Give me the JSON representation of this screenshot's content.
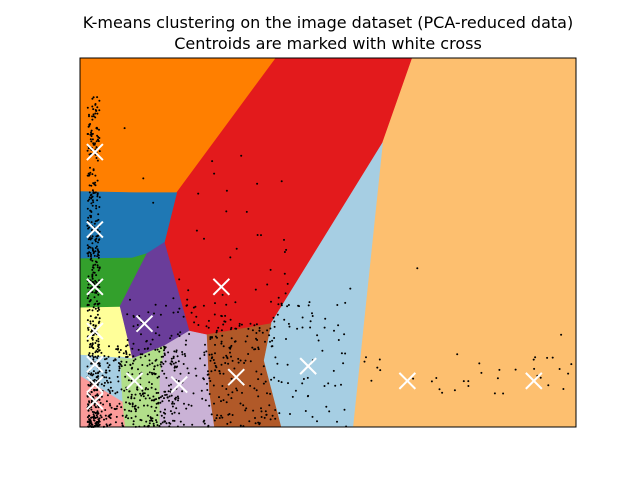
{
  "chart_data": {
    "type": "voronoi_scatter",
    "title": "K-means clustering on the image dataset (PCA-reduced data)",
    "subtitle": "Centroids are marked with white cross",
    "xlabel": "",
    "ylabel": "",
    "xlim": [
      0,
      100
    ],
    "ylim": [
      0,
      100
    ],
    "ticks_shown": false,
    "grid": false,
    "legend": "none",
    "regions": [
      {
        "color": "#ff7f00",
        "polygon": [
          [
            0,
            100
          ],
          [
            39.5,
            100
          ],
          [
            19.5,
            63.5
          ],
          [
            11.5,
            63.5
          ],
          [
            0,
            63.8
          ]
        ]
      },
      {
        "color": "#e31a1c",
        "polygon": [
          [
            39.5,
            100
          ],
          [
            67,
            100
          ],
          [
            61,
            77
          ],
          [
            38.5,
            28
          ],
          [
            25.5,
            25
          ],
          [
            22,
            26
          ],
          [
            17,
            50
          ],
          [
            19.5,
            63.5
          ]
        ]
      },
      {
        "color": "#fdbf6f",
        "polygon": [
          [
            67,
            100
          ],
          [
            100,
            100
          ],
          [
            100,
            0
          ],
          [
            55,
            0
          ],
          [
            61,
            77
          ]
        ]
      },
      {
        "color": "#1f78b4",
        "polygon": [
          [
            0,
            63.8
          ],
          [
            11.5,
            63.5
          ],
          [
            19.5,
            63.5
          ],
          [
            17,
            50
          ],
          [
            13.5,
            47
          ],
          [
            10.5,
            45.8
          ],
          [
            0,
            45.6
          ]
        ]
      },
      {
        "color": "#33a02c",
        "polygon": [
          [
            0,
            45.6
          ],
          [
            10.5,
            45.8
          ],
          [
            13.5,
            47
          ],
          [
            8,
            32.5
          ],
          [
            0,
            32.3
          ]
        ]
      },
      {
        "color": "#6a3d9a",
        "polygon": [
          [
            13.5,
            47
          ],
          [
            17,
            50
          ],
          [
            22,
            26
          ],
          [
            17,
            22
          ],
          [
            10.5,
            18.5
          ],
          [
            8,
            32.5
          ]
        ]
      },
      {
        "color": "#ffff99",
        "polygon": [
          [
            0,
            32.3
          ],
          [
            8,
            32.5
          ],
          [
            10.5,
            18.5
          ],
          [
            0,
            19.5
          ]
        ]
      },
      {
        "color": "#a6cee3",
        "polygon": [
          [
            38.5,
            28
          ],
          [
            61,
            77
          ],
          [
            55,
            0
          ],
          [
            40.5,
            0
          ],
          [
            37,
            18
          ]
        ]
      },
      {
        "color": "#b15928",
        "polygon": [
          [
            25.5,
            25
          ],
          [
            38.5,
            28
          ],
          [
            37,
            18
          ],
          [
            40.5,
            0
          ],
          [
            27,
            0
          ],
          [
            26,
            9.5
          ]
        ]
      },
      {
        "color": "#cab2d6",
        "polygon": [
          [
            17,
            22
          ],
          [
            22,
            26
          ],
          [
            25.5,
            25
          ],
          [
            26,
            9.5
          ],
          [
            27,
            0
          ],
          [
            16,
            0
          ],
          [
            16,
            14
          ]
        ]
      },
      {
        "color": "#b2df8a",
        "polygon": [
          [
            8,
            19
          ],
          [
            10.5,
            18.5
          ],
          [
            17,
            22
          ],
          [
            16,
            14
          ],
          [
            16,
            0
          ],
          [
            9,
            0
          ],
          [
            8.5,
            7
          ]
        ]
      },
      {
        "color": "#fb9a99",
        "polygon": [
          [
            0,
            14
          ],
          [
            8.5,
            7
          ],
          [
            9,
            0
          ],
          [
            0,
            0
          ]
        ]
      },
      {
        "color": "#a6cee3",
        "polygon": [
          [
            0,
            19.5
          ],
          [
            10.5,
            18.5
          ],
          [
            8,
            19
          ],
          [
            8.5,
            7
          ],
          [
            0,
            14
          ]
        ]
      }
    ],
    "centroids": [
      {
        "x": 3,
        "y": 74.5
      },
      {
        "x": 3,
        "y": 53.5
      },
      {
        "x": 3,
        "y": 38
      },
      {
        "x": 3,
        "y": 26
      },
      {
        "x": 3,
        "y": 17
      },
      {
        "x": 3,
        "y": 11.5
      },
      {
        "x": 3,
        "y": 7
      },
      {
        "x": 13,
        "y": 28
      },
      {
        "x": 28.5,
        "y": 38
      },
      {
        "x": 31.5,
        "y": 13.5
      },
      {
        "x": 46,
        "y": 16.5
      },
      {
        "x": 66,
        "y": 12.5
      },
      {
        "x": 91.5,
        "y": 12.5
      },
      {
        "x": 11,
        "y": 12.5
      },
      {
        "x": 20,
        "y": 11.5
      }
    ]
  }
}
